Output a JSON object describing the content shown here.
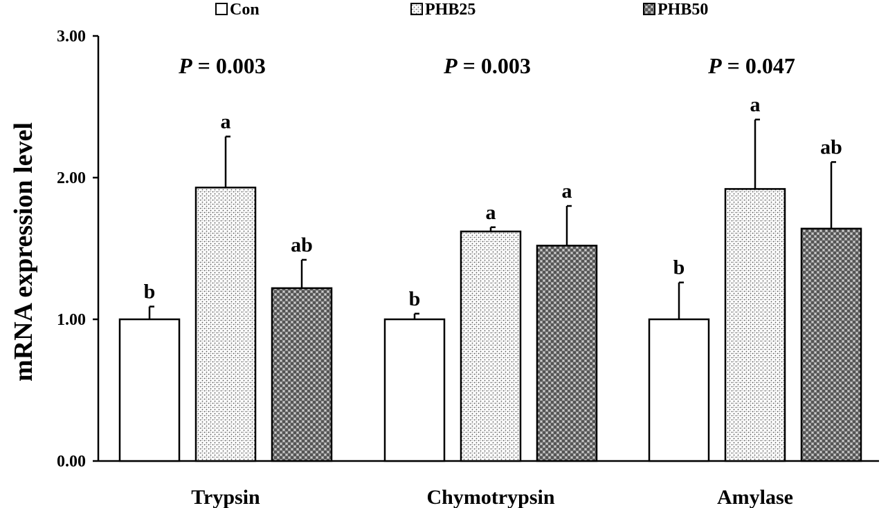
{
  "chart_data": {
    "type": "bar",
    "ylabel": "mRNA expression level",
    "ylim": [
      0,
      3
    ],
    "yticks": [
      "0.00",
      "1.00",
      "2.00",
      "3.00"
    ],
    "categories": [
      "Trypsin",
      "Chymotrypsin",
      "Amylase"
    ],
    "p_prefix": "P",
    "p_values": [
      "= 0.003",
      "= 0.003",
      "= 0.047"
    ],
    "legend_position": "top",
    "series": [
      {
        "name": "Con",
        "pattern": "none",
        "values": [
          1.0,
          1.0,
          1.0
        ],
        "errors": [
          0.09,
          0.04,
          0.26
        ],
        "letters": [
          "b",
          "b",
          "b"
        ]
      },
      {
        "name": "PHB25",
        "pattern": "dots-light",
        "values": [
          1.93,
          1.62,
          1.92
        ],
        "errors": [
          0.36,
          0.03,
          0.49
        ],
        "letters": [
          "a",
          "a",
          "a"
        ]
      },
      {
        "name": "PHB50",
        "pattern": "checker-dark",
        "values": [
          1.22,
          1.52,
          1.64
        ],
        "errors": [
          0.2,
          0.28,
          0.47
        ],
        "letters": [
          "ab",
          "a",
          "ab"
        ]
      }
    ],
    "colors": {
      "axis": "#000000",
      "bar_fill": "#ffffff"
    }
  }
}
